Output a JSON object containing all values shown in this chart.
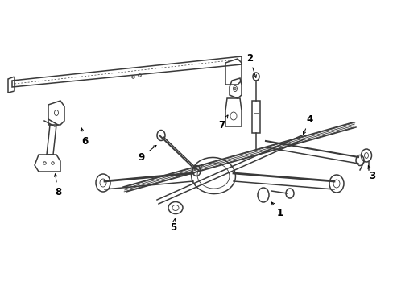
{
  "background_color": "#ffffff",
  "line_color": "#3a3a3a",
  "label_color": "#000000",
  "figsize": [
    4.89,
    3.6
  ],
  "dpi": 100,
  "font_size": 8.5,
  "lw_main": 1.1,
  "lw_thick": 2.0,
  "lw_thin": 0.6
}
